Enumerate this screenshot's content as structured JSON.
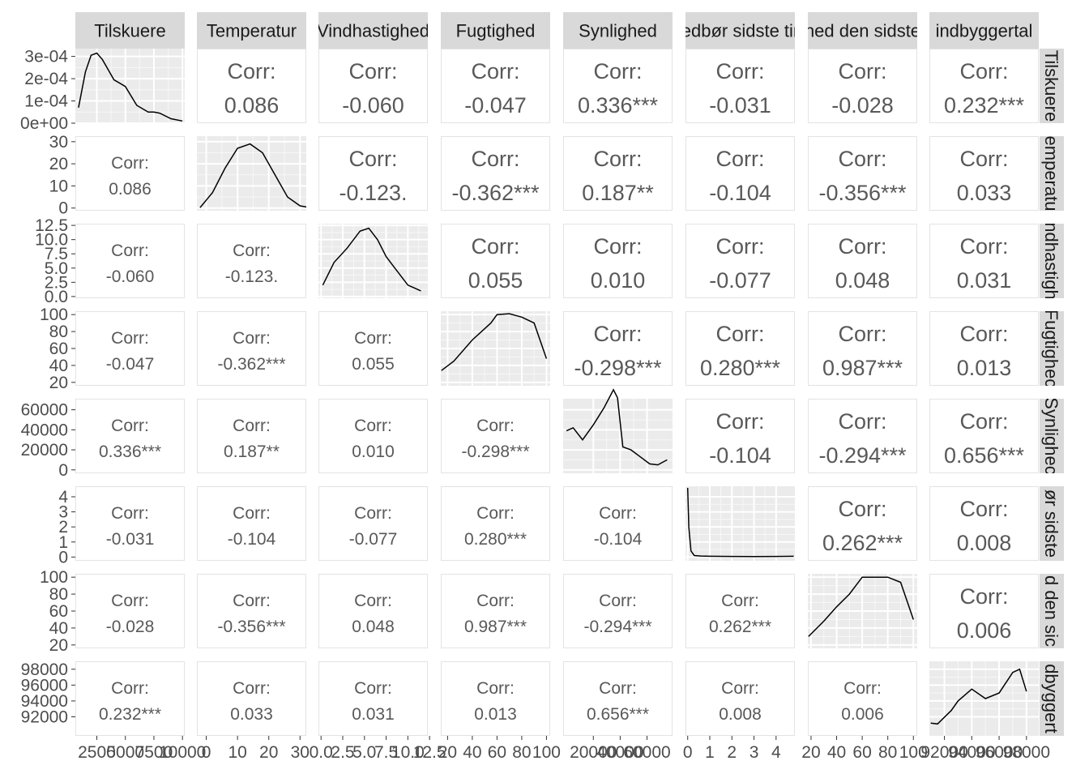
{
  "chart_data": {
    "type": "scatterplot-matrix",
    "variables": [
      "Tilskuere",
      "Temperatur",
      "Vindhastighed",
      "Fugtighed",
      "Synlighed",
      "Nedbør sidste time",
      "Fugtighed den sidste",
      "Indbyggertal"
    ],
    "strip_labels": {
      "top": [
        "Tilskuere",
        "Temperatur",
        "Vindhastighed",
        "Fugtighed",
        "Synlighed",
        "edbør sidste tir",
        "hed den sidste",
        "indbyggertal"
      ],
      "right": [
        "Tilskuere",
        "emperatu",
        "ndhastigh",
        "Fugtighec",
        "Synlighec",
        "ør sidste",
        "d den sic",
        "dbyggert"
      ]
    },
    "corr_label": "Corr:",
    "correlations": [
      [
        "",
        "0.086",
        "-0.060",
        "-0.047",
        "0.336***",
        "-0.031",
        "-0.028",
        "0.232***"
      ],
      [
        "0.086",
        "",
        "-0.123.",
        "-0.362***",
        "0.187**",
        "-0.104",
        "-0.356***",
        "0.033"
      ],
      [
        "-0.060",
        "-0.123.",
        "",
        "0.055",
        "0.010",
        "-0.077",
        "0.048",
        "0.031"
      ],
      [
        "-0.047",
        "-0.362***",
        "0.055",
        "",
        "-0.298***",
        "0.280***",
        "0.987***",
        "0.013"
      ],
      [
        "0.336***",
        "0.187**",
        "0.010",
        "-0.298***",
        "",
        "-0.104",
        "-0.294***",
        "0.656***"
      ],
      [
        "-0.031",
        "-0.104",
        "-0.077",
        "0.280***",
        "-0.104",
        "",
        "0.262***",
        "0.008"
      ],
      [
        "-0.028",
        "-0.356***",
        "0.048",
        "0.987***",
        "-0.294***",
        "0.262***",
        "",
        "0.006"
      ],
      [
        "0.232***",
        "0.033",
        "0.031",
        "0.013",
        "0.656***",
        "0.008",
        "0.006",
        ""
      ]
    ],
    "x_ticks": [
      [
        "2500",
        "5000",
        "7500",
        "10000"
      ],
      [
        "0",
        "10",
        "20",
        "30"
      ],
      [
        "0.0",
        "2.5",
        "5.0",
        "7.5",
        "10.0",
        "12.5"
      ],
      [
        "20",
        "40",
        "60",
        "80",
        "100"
      ],
      [
        "20000",
        "40000",
        "60000"
      ],
      [
        "0",
        "1",
        "2",
        "3",
        "4"
      ],
      [
        "20",
        "40",
        "60",
        "80",
        "100"
      ],
      [
        "92000",
        "94000",
        "96000",
        "98000"
      ]
    ],
    "y_ticks": [
      [
        "0e+00",
        "1e-04",
        "2e-04",
        "3e-04"
      ],
      [
        "0",
        "10",
        "20",
        "30"
      ],
      [
        "0.0",
        "2.5",
        "5.0",
        "7.5",
        "10.0",
        "12.5"
      ],
      [
        "20",
        "40",
        "60",
        "80",
        "100"
      ],
      [
        "0",
        "20000",
        "40000",
        "60000"
      ],
      [
        "0",
        "1",
        "2",
        "3",
        "4"
      ],
      [
        "20",
        "40",
        "60",
        "80",
        "100"
      ],
      [
        "92000",
        "94000",
        "96000",
        "98000"
      ]
    ],
    "x_ranges": [
      [
        620,
        10200
      ],
      [
        -3,
        32
      ],
      [
        -0.3,
        12.3
      ],
      [
        14.5,
        103
      ],
      [
        -2500,
        79000
      ],
      [
        -0.1,
        4.85
      ],
      [
        17.5,
        103
      ],
      [
        90900,
        98900
      ]
    ],
    "y_ranges": [
      [
        0,
        0.000335
      ],
      [
        -1.2,
        32.5
      ],
      [
        -0.3,
        12.8
      ],
      [
        16,
        104
      ],
      [
        -3400,
        71000
      ],
      [
        -0.25,
        4.7
      ],
      [
        16,
        104
      ],
      [
        89600,
        99000
      ]
    ],
    "density_curves": [
      {
        "x": [
          900,
          1500,
          2000,
          2500,
          3000,
          3500,
          4000,
          5000,
          6000,
          7000,
          7500,
          8000,
          9000,
          10000
        ],
        "y": [
          7e-05,
          0.00023,
          0.000305,
          0.000315,
          0.000285,
          0.00024,
          0.000195,
          0.000165,
          8e-05,
          5e-05,
          5e-05,
          4.5e-05,
          2e-05,
          1e-05
        ]
      },
      {
        "x": [
          -2,
          2,
          6,
          10,
          14,
          18,
          22,
          26,
          30,
          32
        ],
        "y": [
          0.2,
          7,
          18,
          27,
          29,
          25,
          15,
          5,
          1,
          0.5
        ]
      },
      {
        "x": [
          0.2,
          1.5,
          3,
          4.5,
          5.5,
          6.5,
          7.5,
          8.5,
          10,
          11.5
        ],
        "y": [
          2,
          6,
          8.5,
          11.5,
          12,
          10,
          7,
          5,
          2,
          1
        ]
      },
      {
        "x": [
          15,
          25,
          40,
          55,
          60,
          70,
          80,
          90,
          100
        ],
        "y": [
          34,
          45,
          70,
          90,
          100,
          101,
          97,
          90,
          48
        ]
      },
      {
        "x": [
          0,
          5000,
          12000,
          20000,
          28000,
          35000,
          38000,
          42000,
          48000,
          55000,
          62000,
          68000,
          75000
        ],
        "y": [
          39000,
          42000,
          30000,
          45000,
          62000,
          80000,
          72000,
          23000,
          20000,
          13000,
          6000,
          5000,
          10000
        ]
      },
      {
        "x": [
          0,
          0.05,
          0.15,
          0.3,
          0.6,
          1.0,
          2.0,
          3.0,
          4.0,
          4.8
        ],
        "y": [
          4.6,
          2.0,
          0.4,
          0.1,
          0.07,
          0.05,
          0.04,
          0.03,
          0.04,
          0.05
        ]
      },
      {
        "x": [
          18,
          30,
          40,
          50,
          60,
          70,
          80,
          90,
          100
        ],
        "y": [
          30,
          48,
          65,
          80,
          100,
          100,
          100,
          94,
          50
        ]
      },
      {
        "x": [
          91000,
          91500,
          92500,
          93000,
          94000,
          95000,
          96000,
          97000,
          97500,
          98000
        ],
        "y": [
          91200,
          91100,
          92800,
          94000,
          95500,
          94300,
          95000,
          97600,
          98000,
          95200
        ]
      }
    ]
  }
}
